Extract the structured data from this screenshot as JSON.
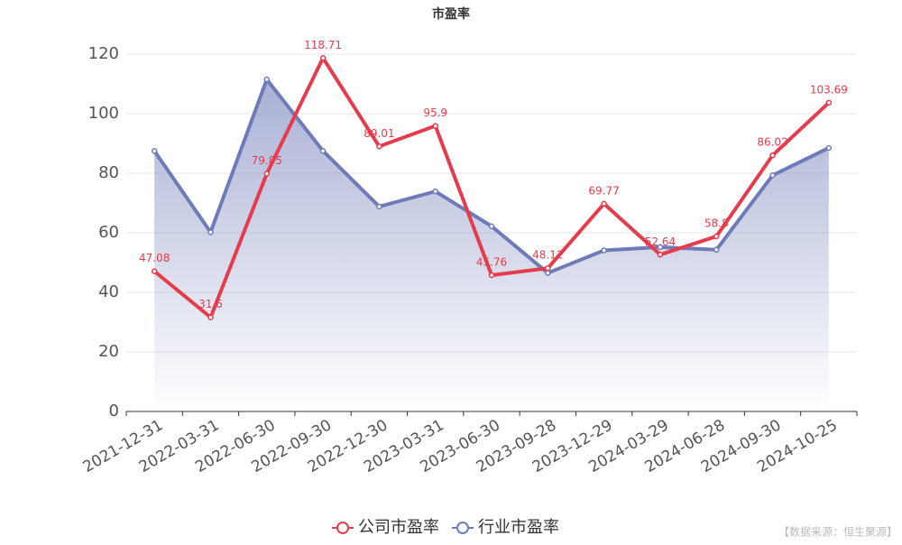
{
  "chart_data": {
    "type": "line",
    "title": "市盈率",
    "categories": [
      "2021-12-31",
      "2022-03-31",
      "2022-06-30",
      "2022-09-30",
      "2022-12-30",
      "2023-03-31",
      "2023-06-30",
      "2023-09-28",
      "2023-12-29",
      "2024-03-29",
      "2024-06-28",
      "2024-09-30",
      "2024-10-25"
    ],
    "series": [
      {
        "name": "公司市盈率",
        "color": "#e63b4c",
        "values": [
          47.08,
          31.6,
          79.85,
          118.71,
          89.01,
          95.9,
          45.76,
          48.12,
          69.77,
          52.64,
          58.8,
          86.02,
          103.69
        ],
        "show_labels": true
      },
      {
        "name": "行业市盈率",
        "color": "#6f7bb8",
        "values": [
          87.5,
          60.2,
          111.5,
          87.5,
          68.8,
          73.9,
          62.2,
          46.5,
          54.1,
          55.2,
          54.3,
          79.3,
          88.5
        ],
        "area": true
      }
    ],
    "ylim": [
      0,
      120
    ],
    "yticks": [
      0,
      20,
      40,
      60,
      80,
      100,
      120
    ],
    "grid": true,
    "legend": "bottom",
    "source": "【数据来源：恒生聚源】"
  }
}
